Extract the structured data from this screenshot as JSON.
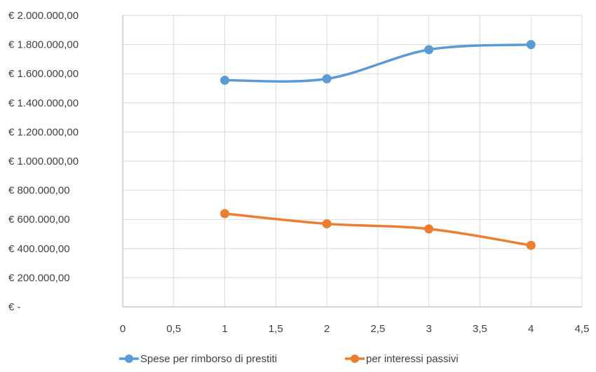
{
  "chart_data": {
    "type": "scatter",
    "title": "",
    "xlabel": "",
    "ylabel": "",
    "xlim": [
      0,
      4.5
    ],
    "ylim": [
      0,
      2000000
    ],
    "x_ticks": [
      0,
      0.5,
      1,
      1.5,
      2,
      2.5,
      3,
      3.5,
      4,
      4.5
    ],
    "x_tick_labels": [
      "0",
      "0,5",
      "1",
      "1,5",
      "2",
      "2,5",
      "3",
      "3,5",
      "4",
      "4,5"
    ],
    "y_ticks": [
      0,
      200000,
      400000,
      600000,
      800000,
      1000000,
      1200000,
      1400000,
      1600000,
      1800000,
      2000000
    ],
    "y_tick_labels": [
      "€ -",
      "€ 200.000,00",
      "€ 400.000,00",
      "€ 600.000,00",
      "€ 800.000,00",
      "€ 1.000.000,00",
      "€ 1.200.000,00",
      "€ 1.400.000,00",
      "€ 1.600.000,00",
      "€ 1.800.000,00",
      "€ 2.000.000,00"
    ],
    "grid": true,
    "smooth_lines": true,
    "legend_position": "bottom",
    "series": [
      {
        "name": "Spese per rimborso di prestiti",
        "color": "#5B9BD5",
        "x": [
          1,
          2,
          3,
          4
        ],
        "values": [
          1555000,
          1565000,
          1765000,
          1800000
        ]
      },
      {
        "name": "per interessi passivi",
        "color": "#ED7D31",
        "x": [
          1,
          2,
          3,
          4
        ],
        "values": [
          640000,
          570000,
          535000,
          422000
        ]
      }
    ]
  }
}
